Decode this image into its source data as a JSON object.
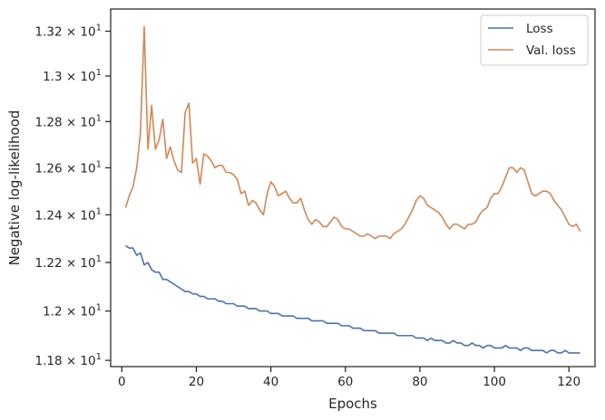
{
  "chart_data": {
    "type": "line",
    "xlabel": "Epochs",
    "ylabel": "Negative log-likelihood",
    "xlim": [
      -3,
      127
    ],
    "ylim": [
      11.775,
      13.3
    ],
    "y_scale": "log",
    "grid": false,
    "legend_position": "top-right",
    "x_ticks": [
      0,
      20,
      40,
      60,
      80,
      100,
      120
    ],
    "x_tick_labels": [
      "0",
      "20",
      "40",
      "60",
      "80",
      "100",
      "120"
    ],
    "y_ticks": [
      11.8,
      12.0,
      12.2,
      12.4,
      12.6,
      12.8,
      13.0,
      13.2
    ],
    "y_tick_labels": [
      {
        "mant": "1.18",
        "exp": "1"
      },
      {
        "mant": "1.2",
        "exp": "1"
      },
      {
        "mant": "1.22",
        "exp": "1"
      },
      {
        "mant": "1.24",
        "exp": "1"
      },
      {
        "mant": "1.26",
        "exp": "1"
      },
      {
        "mant": "1.28",
        "exp": "1"
      },
      {
        "mant": "1.3",
        "exp": "1"
      },
      {
        "mant": "1.32",
        "exp": "1"
      }
    ],
    "series": [
      {
        "name": "Loss",
        "color": "#4c72b0",
        "x_start": 1,
        "values": [
          12.27,
          12.26,
          12.26,
          12.23,
          12.24,
          12.19,
          12.2,
          12.17,
          12.16,
          12.16,
          12.13,
          12.13,
          12.12,
          12.11,
          12.1,
          12.09,
          12.08,
          12.08,
          12.07,
          12.07,
          12.06,
          12.06,
          12.05,
          12.05,
          12.05,
          12.04,
          12.04,
          12.03,
          12.03,
          12.03,
          12.02,
          12.02,
          12.02,
          12.01,
          12.01,
          12.01,
          12.0,
          12.0,
          12.0,
          11.99,
          11.99,
          11.99,
          11.98,
          11.98,
          11.98,
          11.98,
          11.97,
          11.97,
          11.97,
          11.97,
          11.96,
          11.96,
          11.96,
          11.96,
          11.95,
          11.95,
          11.95,
          11.95,
          11.94,
          11.94,
          11.94,
          11.93,
          11.93,
          11.93,
          11.92,
          11.92,
          11.92,
          11.92,
          11.91,
          11.91,
          11.91,
          11.91,
          11.91,
          11.9,
          11.9,
          11.9,
          11.9,
          11.9,
          11.89,
          11.89,
          11.89,
          11.88,
          11.89,
          11.88,
          11.88,
          11.88,
          11.87,
          11.87,
          11.88,
          11.87,
          11.87,
          11.86,
          11.86,
          11.87,
          11.86,
          11.86,
          11.85,
          11.86,
          11.86,
          11.85,
          11.85,
          11.85,
          11.86,
          11.85,
          11.85,
          11.85,
          11.84,
          11.85,
          11.85,
          11.84,
          11.84,
          11.84,
          11.84,
          11.83,
          11.84,
          11.84,
          11.83,
          11.83,
          11.84,
          11.83,
          11.83,
          11.83,
          11.83
        ]
      },
      {
        "name": "Val. loss",
        "color": "#dd8452",
        "x_start": 1,
        "values": [
          12.43,
          12.48,
          12.52,
          12.6,
          12.75,
          13.22,
          12.68,
          12.87,
          12.68,
          12.72,
          12.81,
          12.64,
          12.69,
          12.63,
          12.59,
          12.58,
          12.84,
          12.88,
          12.62,
          12.64,
          12.53,
          12.66,
          12.65,
          12.63,
          12.6,
          12.61,
          12.61,
          12.58,
          12.58,
          12.57,
          12.55,
          12.49,
          12.5,
          12.44,
          12.46,
          12.45,
          12.42,
          12.4,
          12.49,
          12.54,
          12.52,
          12.48,
          12.49,
          12.5,
          12.47,
          12.45,
          12.45,
          12.47,
          12.42,
          12.38,
          12.36,
          12.38,
          12.37,
          12.35,
          12.35,
          12.37,
          12.39,
          12.38,
          12.35,
          12.34,
          12.34,
          12.33,
          12.32,
          12.31,
          12.31,
          12.32,
          12.31,
          12.3,
          12.31,
          12.31,
          12.31,
          12.3,
          12.32,
          12.33,
          12.34,
          12.36,
          12.39,
          12.42,
          12.46,
          12.48,
          12.47,
          12.44,
          12.43,
          12.42,
          12.41,
          12.39,
          12.36,
          12.34,
          12.36,
          12.36,
          12.35,
          12.34,
          12.36,
          12.36,
          12.37,
          12.4,
          12.42,
          12.43,
          12.47,
          12.49,
          12.49,
          12.52,
          12.56,
          12.6,
          12.6,
          12.58,
          12.6,
          12.59,
          12.54,
          12.49,
          12.48,
          12.49,
          12.5,
          12.5,
          12.49,
          12.46,
          12.44,
          12.42,
          12.39,
          12.36,
          12.35,
          12.36,
          12.33
        ]
      }
    ]
  }
}
